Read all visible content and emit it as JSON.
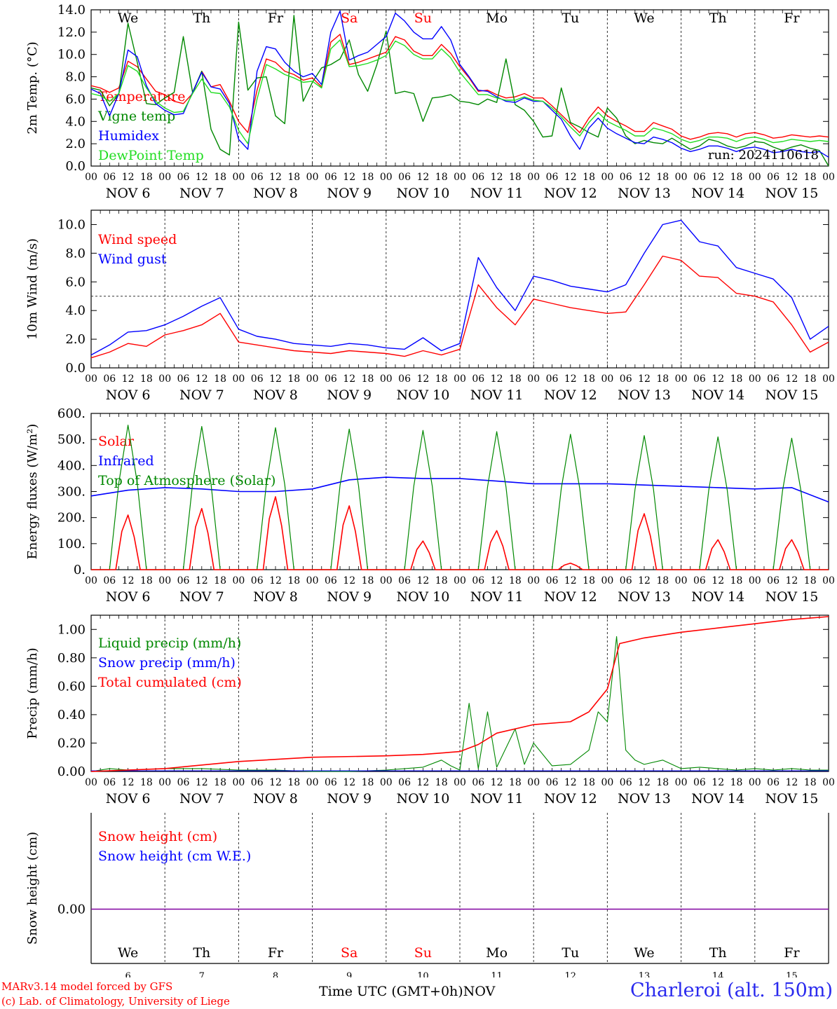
{
  "days": [
    {
      "weekday": "We",
      "date": "NOV  6",
      "short": "6",
      "weekend": false
    },
    {
      "weekday": "Th",
      "date": "NOV  7",
      "short": "7",
      "weekend": false
    },
    {
      "weekday": "Fr",
      "date": "NOV  8",
      "short": "8",
      "weekend": false
    },
    {
      "weekday": "Sa",
      "date": "NOV  9",
      "short": "9",
      "weekend": true
    },
    {
      "weekday": "Su",
      "date": "NOV 10",
      "short": "10",
      "weekend": true
    },
    {
      "weekday": "Mo",
      "date": "NOV 11",
      "short": "11",
      "weekend": false
    },
    {
      "weekday": "Tu",
      "date": "NOV 12",
      "short": "12",
      "weekend": false
    },
    {
      "weekday": "We",
      "date": "NOV 13",
      "short": "13",
      "weekend": false
    },
    {
      "weekday": "Th",
      "date": "NOV 14",
      "short": "14",
      "weekend": false
    },
    {
      "weekday": "Fr",
      "date": "NOV 15",
      "short": "15",
      "weekend": false
    }
  ],
  "hour_labels": [
    "00",
    "06",
    "12",
    "18"
  ],
  "final_hour_label": "00",
  "colors": {
    "red": "#ff0000",
    "green": "#008800",
    "blue": "#0000ff",
    "lightgreen": "#22dd22",
    "purple": "#8000a0",
    "weekend": "#ff0000"
  },
  "chart_data": [
    {
      "type": "line",
      "ylabel": "2m Temp. (°C)",
      "ylim": [
        0,
        14
      ],
      "yticks": [
        "0.0",
        "2.0",
        "4.0",
        "6.0",
        "8.0",
        "10.0",
        "12.0",
        "14.0"
      ],
      "annotation": "run: 2024110618",
      "x_hours": [
        0,
        3,
        6,
        9,
        12,
        15,
        18,
        21,
        24,
        27,
        30,
        33,
        36,
        39,
        42,
        45,
        48,
        51,
        54,
        57,
        60,
        63,
        66,
        69,
        72,
        75,
        78,
        81,
        84,
        87,
        90,
        93,
        96,
        99,
        102,
        105,
        108,
        111,
        114,
        117,
        120,
        123,
        126,
        129,
        132,
        135,
        138,
        141,
        144,
        147,
        150,
        153,
        156,
        159,
        162,
        165,
        168,
        171,
        174,
        177,
        180,
        183,
        186,
        189,
        192,
        195,
        198,
        201,
        204,
        207,
        210,
        213,
        216,
        219,
        222,
        225,
        228,
        231,
        234,
        237,
        240
      ],
      "series": [
        {
          "name": "Temperature",
          "color": "red",
          "values": [
            7.2,
            7.0,
            6.6,
            7.0,
            9.4,
            8.9,
            7.8,
            6.7,
            6.4,
            5.8,
            5.6,
            6.5,
            8.5,
            7.1,
            7.3,
            5.8,
            4.0,
            3.0,
            6.8,
            9.6,
            9.3,
            8.5,
            8.2,
            7.7,
            7.9,
            7.1,
            11.1,
            11.8,
            9.1,
            9.3,
            9.6,
            9.9,
            10.2,
            11.6,
            11.3,
            10.3,
            9.9,
            9.9,
            10.9,
            10.1,
            8.9,
            7.9,
            6.7,
            6.8,
            6.4,
            6.1,
            6.2,
            6.5,
            6.1,
            6.1,
            5.4,
            4.6,
            3.8,
            3.0,
            4.3,
            5.3,
            4.5,
            4.0,
            3.6,
            3.1,
            3.1,
            3.9,
            3.6,
            3.3,
            2.7,
            2.4,
            2.6,
            2.9,
            3.0,
            2.9,
            2.6,
            2.9,
            3.0,
            2.8,
            2.5,
            2.6,
            2.8,
            2.7,
            2.6,
            2.7,
            2.6
          ]
        },
        {
          "name": "Vigne temp",
          "color": "green",
          "values": [
            7.0,
            6.8,
            5.4,
            6.5,
            12.8,
            9.3,
            5.6,
            5.5,
            6.1,
            6.6,
            11.6,
            6.6,
            8.5,
            3.3,
            1.5,
            1.0,
            12.9,
            6.8,
            7.9,
            8.0,
            4.5,
            3.8,
            13.5,
            5.8,
            7.5,
            8.8,
            9.1,
            9.6,
            11.3,
            8.2,
            6.7,
            9.1,
            12.1,
            6.5,
            6.7,
            6.5,
            4.0,
            6.1,
            6.2,
            6.4,
            5.8,
            5.7,
            5.5,
            6.0,
            5.7,
            9.6,
            5.5,
            5.0,
            4.0,
            2.6,
            2.7,
            7.0,
            3.9,
            3.5,
            3.0,
            2.6,
            5.2,
            4.3,
            2.7,
            2.0,
            2.3,
            2.1,
            2.0,
            2.5,
            2.0,
            1.5,
            1.8,
            2.4,
            2.2,
            1.8,
            1.6,
            1.8,
            2.2,
            2.1,
            1.7,
            1.4,
            1.7,
            1.9,
            1.6,
            1.4,
            0.0
          ]
        },
        {
          "name": "Humidex",
          "color": "blue",
          "values": [
            6.9,
            6.5,
            4.5,
            6.5,
            10.4,
            9.8,
            7.2,
            5.6,
            5.0,
            4.6,
            4.7,
            6.6,
            8.4,
            7.1,
            6.9,
            5.6,
            2.4,
            1.5,
            8.5,
            10.7,
            10.5,
            9.3,
            8.5,
            8.0,
            8.3,
            7.3,
            12.0,
            13.9,
            9.5,
            9.9,
            10.2,
            10.9,
            11.6,
            13.7,
            13.0,
            12.0,
            11.4,
            11.4,
            12.5,
            11.3,
            9.1,
            8.0,
            6.8,
            6.7,
            6.2,
            5.8,
            5.7,
            6.1,
            5.8,
            5.8,
            5.0,
            4.2,
            2.7,
            1.5,
            3.4,
            4.3,
            3.4,
            2.9,
            2.5,
            2.1,
            2.0,
            2.6,
            2.4,
            2.1,
            1.6,
            1.3,
            1.5,
            1.8,
            1.8,
            1.6,
            1.3,
            1.6,
            1.7,
            1.5,
            1.2,
            1.3,
            1.5,
            1.3,
            1.2,
            1.3,
            0.8
          ]
        },
        {
          "name": "DewPoint Temp",
          "color": "lightgreen",
          "values": [
            6.5,
            6.3,
            5.8,
            6.5,
            9.0,
            8.5,
            7.0,
            5.8,
            5.2,
            4.8,
            4.9,
            6.5,
            7.8,
            6.6,
            6.5,
            5.3,
            3.2,
            2.0,
            6.0,
            9.1,
            8.7,
            8.2,
            7.9,
            7.5,
            7.6,
            7.0,
            10.5,
            11.3,
            8.9,
            9.0,
            9.2,
            9.5,
            9.9,
            11.2,
            10.8,
            10.0,
            9.6,
            9.6,
            10.5,
            9.7,
            8.4,
            7.4,
            6.4,
            6.4,
            6.1,
            5.9,
            5.9,
            6.2,
            5.9,
            5.8,
            5.2,
            4.4,
            3.5,
            2.7,
            3.9,
            4.8,
            4.0,
            3.6,
            3.2,
            2.7,
            2.7,
            3.4,
            3.2,
            2.9,
            2.4,
            2.1,
            2.3,
            2.6,
            2.6,
            2.5,
            2.2,
            2.5,
            2.6,
            2.4,
            2.1,
            2.2,
            2.4,
            2.3,
            2.2,
            2.3,
            2.2
          ]
        }
      ]
    },
    {
      "type": "line",
      "ylabel": "10m Wind (m/s)",
      "ylim": [
        0,
        11
      ],
      "yticks": [
        "0.0",
        "2.0",
        "4.0",
        "6.0",
        "8.0",
        "10.0"
      ],
      "reference_line": 5,
      "x_hours": [
        0,
        6,
        12,
        18,
        24,
        30,
        36,
        42,
        48,
        54,
        60,
        66,
        72,
        78,
        84,
        90,
        96,
        102,
        108,
        114,
        120,
        126,
        132,
        138,
        144,
        150,
        156,
        162,
        168,
        174,
        180,
        186,
        192,
        198,
        204,
        210,
        216,
        222,
        228,
        234,
        240
      ],
      "series": [
        {
          "name": "Wind speed",
          "color": "red",
          "values": [
            0.7,
            1.1,
            1.7,
            1.5,
            2.3,
            2.6,
            3.0,
            3.8,
            1.8,
            1.6,
            1.4,
            1.2,
            1.1,
            1.0,
            1.2,
            1.1,
            1.0,
            0.8,
            1.2,
            0.9,
            1.3,
            5.8,
            4.2,
            3.0,
            4.8,
            4.5,
            4.2,
            4.0,
            3.8,
            3.9,
            5.8,
            7.8,
            7.5,
            6.4,
            6.3,
            5.2,
            5.0,
            4.6,
            3.0,
            1.1,
            1.8
          ]
        },
        {
          "name": "Wind gust",
          "color": "blue",
          "values": [
            0.9,
            1.6,
            2.5,
            2.6,
            3.0,
            3.6,
            4.3,
            4.9,
            2.7,
            2.2,
            2.0,
            1.7,
            1.6,
            1.5,
            1.7,
            1.6,
            1.4,
            1.3,
            2.1,
            1.2,
            1.7,
            7.7,
            5.6,
            4.0,
            6.4,
            6.1,
            5.7,
            5.5,
            5.3,
            5.8,
            8.0,
            10.0,
            10.3,
            8.8,
            8.5,
            7.0,
            6.6,
            6.2,
            4.9,
            2.0,
            2.9
          ]
        }
      ]
    },
    {
      "type": "line",
      "ylabel": "Energy fluxes (W/m²)",
      "ylim": [
        0,
        600
      ],
      "yticks": [
        "0.",
        "100.",
        "200.",
        "300.",
        "400.",
        "500.",
        "600."
      ],
      "peaks": {
        "Solar": [
          210,
          235,
          280,
          245,
          110,
          150,
          25,
          215,
          115,
          115
        ],
        "Top of Atmosphere (Solar)": [
          555,
          550,
          545,
          540,
          535,
          530,
          520,
          515,
          510,
          505
        ]
      },
      "infrared": {
        "x_hours": [
          0,
          12,
          24,
          36,
          48,
          60,
          72,
          84,
          96,
          108,
          120,
          132,
          144,
          156,
          168,
          180,
          192,
          204,
          216,
          228,
          240
        ],
        "values": [
          283,
          305,
          315,
          310,
          300,
          300,
          310,
          345,
          355,
          350,
          350,
          340,
          330,
          330,
          330,
          325,
          320,
          315,
          310,
          315,
          260
        ]
      },
      "series": [
        {
          "name": "Solar",
          "color": "red"
        },
        {
          "name": "Infrared",
          "color": "blue"
        },
        {
          "name": "Top of Atmosphere (Solar)",
          "color": "green"
        }
      ]
    },
    {
      "type": "line",
      "ylabel": "Precip (mm/h)",
      "ylim": [
        0,
        1.1
      ],
      "yticks": [
        "0.00",
        "0.20",
        "0.40",
        "0.60",
        "0.80",
        "1.00"
      ],
      "liquid": {
        "x_hours": [
          0,
          6,
          12,
          24,
          36,
          48,
          60,
          72,
          84,
          96,
          108,
          114,
          117,
          120,
          123,
          126,
          129,
          132,
          138,
          141,
          144,
          150,
          156,
          162,
          165,
          168,
          171,
          174,
          177,
          180,
          186,
          192,
          198,
          204,
          210,
          216,
          222,
          228,
          234,
          240
        ],
        "values": [
          0,
          0.02,
          0.01,
          0.02,
          0.02,
          0.01,
          0.01,
          0,
          0,
          0.01,
          0.03,
          0.08,
          0.04,
          0.01,
          0.48,
          0.02,
          0.42,
          0.03,
          0.3,
          0.05,
          0.2,
          0.04,
          0.05,
          0.15,
          0.42,
          0.35,
          0.95,
          0.15,
          0.08,
          0.05,
          0.08,
          0.02,
          0.03,
          0.02,
          0.01,
          0.02,
          0.01,
          0.02,
          0.01,
          0.01
        ]
      },
      "cumulated": {
        "x_hours": [
          0,
          24,
          48,
          72,
          96,
          108,
          120,
          126,
          132,
          144,
          156,
          162,
          168,
          172,
          180,
          192,
          204,
          216,
          228,
          240
        ],
        "values": [
          0,
          0.02,
          0.07,
          0.1,
          0.11,
          0.12,
          0.14,
          0.19,
          0.27,
          0.33,
          0.35,
          0.42,
          0.58,
          0.9,
          0.94,
          0.98,
          1.01,
          1.04,
          1.07,
          1.09
        ]
      },
      "series": [
        {
          "name": "Liquid precip (mm/h)",
          "color": "green"
        },
        {
          "name": "Snow precip (mm/h)",
          "color": "blue"
        },
        {
          "name": "Total cumulated (cm)",
          "color": "red"
        }
      ]
    },
    {
      "type": "line",
      "ylabel": "Snow height (cm)",
      "yticks": [
        "0.00"
      ],
      "xlabel": "Time UTC (GMT+0h)",
      "xlabel_suffix": "NOV",
      "series": [
        {
          "name": "Snow height (cm)",
          "color": "red",
          "values": [
            0,
            0
          ]
        },
        {
          "name": "Snow height (cm W.E.)",
          "color": "blue",
          "values": [
            0,
            0
          ]
        }
      ]
    }
  ],
  "footer": {
    "credit_line1": "MARv3.14 model forced by GFS",
    "credit_line2": "(c) Lab. of Climatology, University of Liege",
    "xlabel": "Time UTC (GMT+0h)",
    "xlabel_suffix": "NOV",
    "station": "Charleroi (alt. 150m)"
  }
}
